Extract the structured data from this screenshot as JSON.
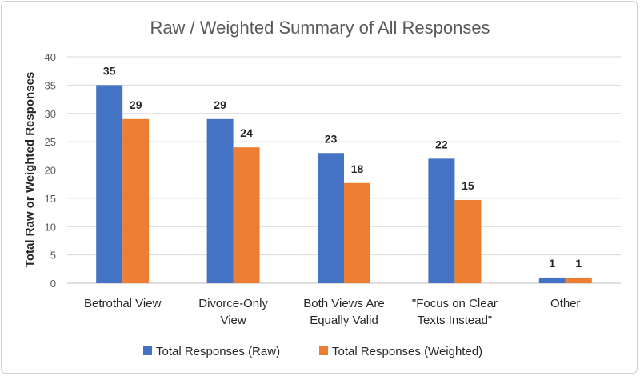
{
  "chart_data": {
    "type": "bar",
    "title": "Raw / Weighted Summary of All Responses",
    "ylabel": "Total Raw or Weighted Responses",
    "ylim": [
      0,
      40
    ],
    "yticks": [
      0,
      5,
      10,
      15,
      20,
      25,
      30,
      35,
      40
    ],
    "grid": true,
    "legend_position": "bottom",
    "categories": [
      [
        "Betrothal View"
      ],
      [
        "Divorce-Only",
        "View"
      ],
      [
        "Both Views Are",
        "Equally Valid"
      ],
      [
        "\"Focus on Clear",
        "Texts Instead\""
      ],
      [
        "Other"
      ]
    ],
    "series": [
      {
        "name": "Total Responses (Raw)",
        "color": "#4472C4",
        "values": [
          35,
          29,
          23,
          22,
          1
        ],
        "labels": [
          "35",
          "29",
          "23",
          "22",
          "1"
        ]
      },
      {
        "name": "Total Responses (Weighted)",
        "color": "#ED7D31",
        "values": [
          29,
          24,
          17.7,
          14.7,
          1
        ],
        "labels": [
          "29",
          "24",
          "18",
          "15",
          "1"
        ]
      }
    ]
  }
}
